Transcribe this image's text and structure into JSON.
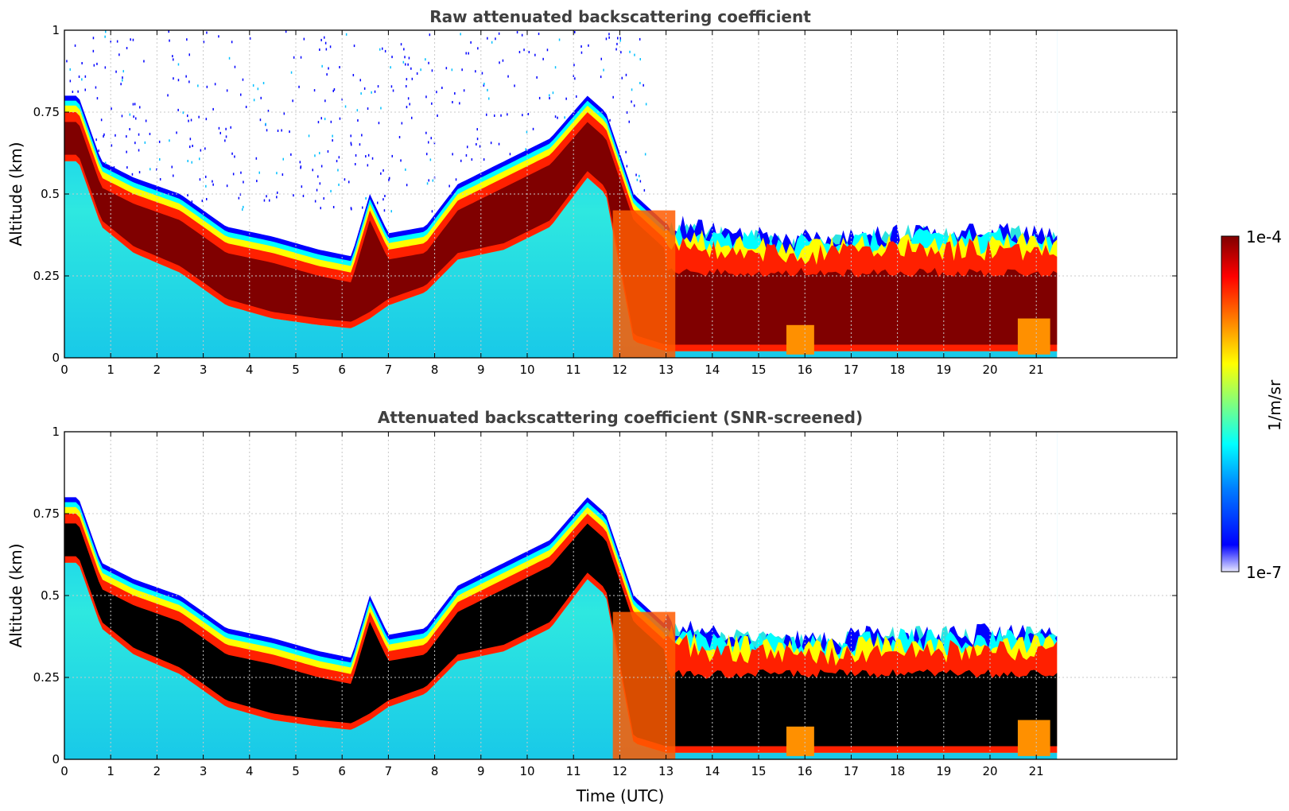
{
  "colors": {
    "jet": [
      "#e8e8ff",
      "#0000ff",
      "#0080ff",
      "#00ffff",
      "#7fff7f",
      "#ffff00",
      "#ff8000",
      "#ff0000",
      "#800000"
    ],
    "screened_core": "#000000",
    "title": "#404040"
  },
  "colorbar": {
    "label": "1/m/sr",
    "max_label": "1e-4",
    "min_label": "1e-7",
    "scale": "log"
  },
  "chart_data": [
    {
      "type": "heatmap",
      "title": "Raw attenuated backscattering coefficient",
      "xlabel": "",
      "ylabel": "Altitude (km)",
      "xlim": [
        0,
        24
      ],
      "ylim": [
        0,
        1
      ],
      "x_ticks": [
        "0",
        "1",
        "2",
        "3",
        "4",
        "5",
        "6",
        "7",
        "8",
        "9",
        "10",
        "11",
        "12",
        "13",
        "14",
        "15",
        "16",
        "17",
        "18",
        "19",
        "20",
        "21"
      ],
      "y_ticks": [
        "0",
        "0.25",
        "0.5",
        "0.75",
        "1"
      ],
      "y_tick_values": [
        0,
        0.25,
        0.5,
        0.75,
        1
      ],
      "grid": true,
      "screened": false,
      "data_end_hour": 21.45,
      "boundary_layer_top_km": {
        "time_hours": [
          0.3,
          0.8,
          1.5,
          2.5,
          3.5,
          4.5,
          5.5,
          6.2,
          6.6,
          7.0,
          7.8,
          8.5,
          9.5,
          10.5,
          11.3,
          11.7,
          12.3,
          13.0,
          14,
          16,
          18,
          20,
          21.4
        ],
        "top": [
          0.75,
          0.55,
          0.5,
          0.45,
          0.35,
          0.32,
          0.28,
          0.26,
          0.45,
          0.33,
          0.35,
          0.48,
          0.55,
          0.62,
          0.75,
          0.7,
          0.45,
          0.36,
          0.33,
          0.31,
          0.33,
          0.33,
          0.33
        ],
        "core_bottom": [
          0.6,
          0.4,
          0.32,
          0.26,
          0.16,
          0.12,
          0.1,
          0.09,
          0.12,
          0.16,
          0.2,
          0.3,
          0.33,
          0.4,
          0.55,
          0.5,
          0.05,
          0.02,
          0.02,
          0.02,
          0.02,
          0.02,
          0.02
        ]
      }
    },
    {
      "type": "heatmap",
      "title": "Attenuated backscattering coefficient (SNR-screened)",
      "xlabel": "Time (UTC)",
      "ylabel": "Altitude (km)",
      "xlim": [
        0,
        24
      ],
      "ylim": [
        0,
        1
      ],
      "x_ticks": [
        "0",
        "1",
        "2",
        "3",
        "4",
        "5",
        "6",
        "7",
        "8",
        "9",
        "10",
        "11",
        "12",
        "13",
        "14",
        "15",
        "16",
        "17",
        "18",
        "19",
        "20",
        "21"
      ],
      "y_ticks": [
        "0",
        "0.25",
        "0.5",
        "0.75",
        "1"
      ],
      "y_tick_values": [
        0,
        0.25,
        0.5,
        0.75,
        1
      ],
      "grid": true,
      "screened": true,
      "data_end_hour": 21.45,
      "boundary_layer_top_km": {
        "time_hours": [
          0.3,
          0.8,
          1.5,
          2.5,
          3.5,
          4.5,
          5.5,
          6.2,
          6.6,
          7.0,
          7.8,
          8.5,
          9.5,
          10.5,
          11.3,
          11.7,
          12.3,
          13.0,
          14,
          16,
          18,
          20,
          21.4
        ],
        "top": [
          0.75,
          0.55,
          0.5,
          0.45,
          0.35,
          0.32,
          0.28,
          0.26,
          0.45,
          0.33,
          0.35,
          0.48,
          0.55,
          0.62,
          0.75,
          0.7,
          0.45,
          0.36,
          0.33,
          0.31,
          0.33,
          0.33,
          0.33
        ],
        "core_bottom": [
          0.6,
          0.4,
          0.32,
          0.26,
          0.16,
          0.12,
          0.1,
          0.09,
          0.12,
          0.16,
          0.2,
          0.3,
          0.33,
          0.4,
          0.55,
          0.5,
          0.05,
          0.02,
          0.02,
          0.02,
          0.02,
          0.02,
          0.02
        ]
      }
    }
  ]
}
